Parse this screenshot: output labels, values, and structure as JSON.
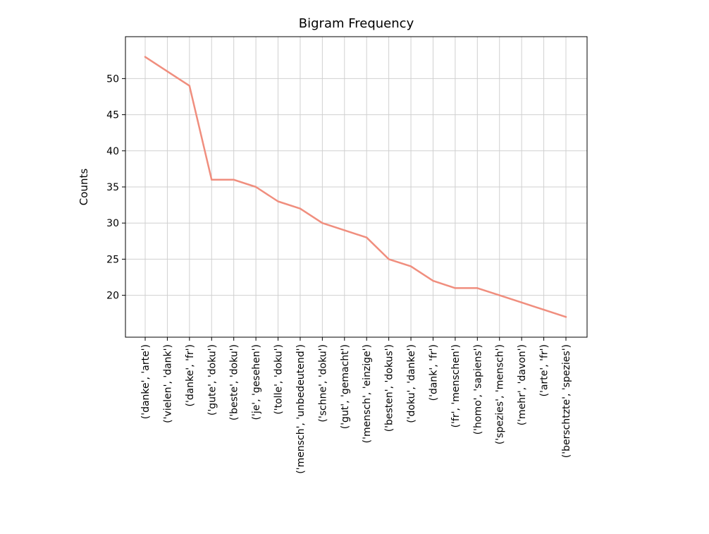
{
  "chart_data": {
    "type": "line",
    "title": "Bigram Frequency",
    "xlabel": "",
    "ylabel": "Counts",
    "categories": [
      "('danke', 'arte')",
      "('vielen', 'dank')",
      "('danke', 'fr')",
      "('gute', 'doku')",
      "('beste', 'doku')",
      "('je', 'gesehen')",
      "('tolle', 'doku')",
      "('mensch', 'unbedeutend')",
      "('schne', 'doku')",
      "('gut', 'gemacht')",
      "('mensch', 'einzige')",
      "('besten', 'dokus')",
      "('doku', 'danke')",
      "('dank', 'fr')",
      "('fr', 'menschen')",
      "('homo', 'sapiens')",
      "('spezies', 'mensch')",
      "('mehr', 'davon')",
      "('arte', 'fr')",
      "('berschtzte', 'spezies')"
    ],
    "series": [
      {
        "values": [
          53,
          51,
          49,
          36,
          36,
          35,
          33,
          32,
          30,
          29,
          28,
          25,
          24,
          22,
          21,
          21,
          20,
          19,
          18,
          17
        ]
      }
    ],
    "ylim": [
      14.2,
      55.8
    ],
    "yticks": [
      20,
      25,
      30,
      35,
      40,
      45,
      50
    ],
    "grid": true,
    "line_color": "#f08e7e"
  }
}
